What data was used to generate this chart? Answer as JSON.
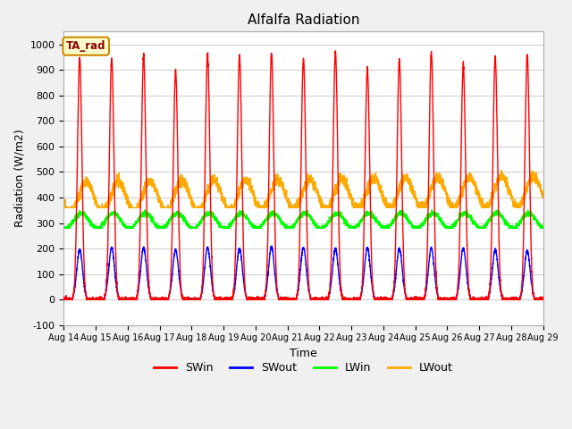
{
  "title": "Alfalfa Radiation",
  "xlabel": "Time",
  "ylabel": "Radiation (W/m2)",
  "ylim": [
    -100,
    1050
  ],
  "background_color": "#f0f0f0",
  "plot_bg_color": "#ffffff",
  "grid_color": "#d0d0d0",
  "annotation_text": "TA_rad",
  "annotation_bg": "#ffffcc",
  "annotation_border": "#cc8800",
  "series": {
    "SWin": {
      "color": "#ff0000",
      "lw": 1.0
    },
    "SWout": {
      "color": "#0000ff",
      "lw": 1.0
    },
    "LWin": {
      "color": "#00ff00",
      "lw": 1.0
    },
    "LWout": {
      "color": "#ffaa00",
      "lw": 1.0
    }
  },
  "xtick_labels": [
    "Aug 14",
    "Aug 15",
    "Aug 16",
    "Aug 17",
    "Aug 18",
    "Aug 19",
    "Aug 20",
    "Aug 21",
    "Aug 22",
    "Aug 23",
    "Aug 24",
    "Aug 25",
    "Aug 26",
    "Aug 27",
    "Aug 28",
    "Aug 29"
  ],
  "ytick_labels": [
    -100,
    0,
    100,
    200,
    300,
    400,
    500,
    600,
    700,
    800,
    900,
    1000
  ],
  "num_days": 15,
  "pts_per_day": 288,
  "SWin_peak": 970,
  "SWout_peak": 215,
  "LWin_base": 308,
  "LWin_amp": 30,
  "LWout_base": 400,
  "LWout_amp": 60
}
